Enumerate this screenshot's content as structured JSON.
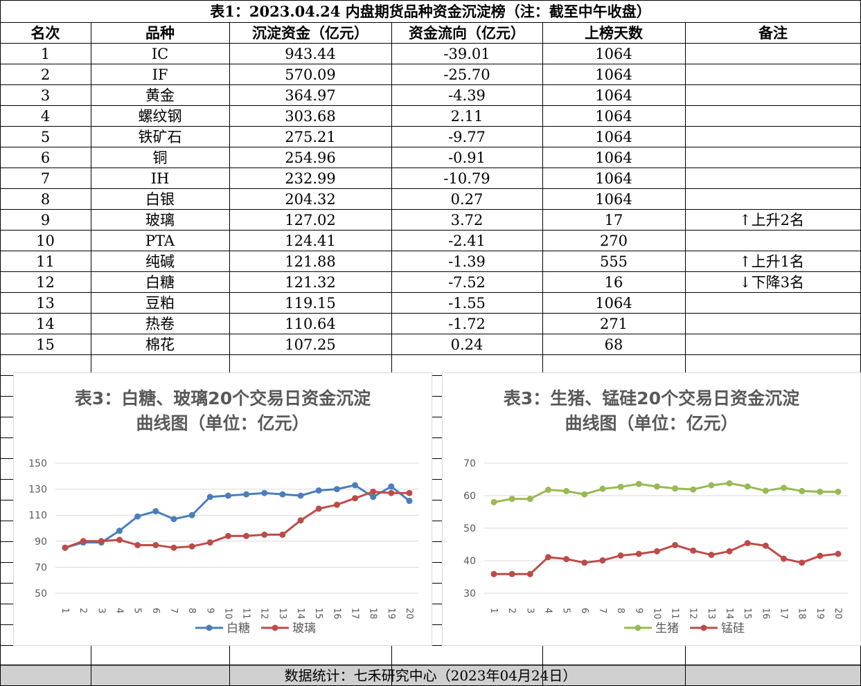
{
  "table": {
    "title": "表1：2023.04.24 内盘期货品种资金沉淀榜（注：截至中午收盘）",
    "headers": [
      "名次",
      "品种",
      "沉淀资金（亿元）",
      "资金流向（亿元）",
      "上榜天数",
      "备注"
    ],
    "rows": [
      [
        "1",
        "IC",
        "943.44",
        "-39.01",
        "1064",
        ""
      ],
      [
        "2",
        "IF",
        "570.09",
        "-25.70",
        "1064",
        ""
      ],
      [
        "3",
        "黄金",
        "364.97",
        "-4.39",
        "1064",
        ""
      ],
      [
        "4",
        "螺纹钢",
        "303.68",
        "2.11",
        "1064",
        ""
      ],
      [
        "5",
        "铁矿石",
        "275.21",
        "-9.77",
        "1064",
        ""
      ],
      [
        "6",
        "铜",
        "254.96",
        "-0.91",
        "1064",
        ""
      ],
      [
        "7",
        "IH",
        "232.99",
        "-10.79",
        "1064",
        ""
      ],
      [
        "8",
        "白银",
        "204.32",
        "0.27",
        "1064",
        ""
      ],
      [
        "9",
        "玻璃",
        "127.02",
        "3.72",
        "17",
        "↑上升2名"
      ],
      [
        "10",
        "PTA",
        "124.41",
        "-2.41",
        "270",
        ""
      ],
      [
        "11",
        "纯碱",
        "121.88",
        "-1.39",
        "555",
        "↑上升1名"
      ],
      [
        "12",
        "白糖",
        "121.32",
        "-7.52",
        "16",
        "↓下降3名"
      ],
      [
        "13",
        "豆粕",
        "119.15",
        "-1.55",
        "1064",
        ""
      ],
      [
        "14",
        "热卷",
        "110.64",
        "-1.72",
        "271",
        ""
      ],
      [
        "15",
        "棉花",
        "107.25",
        "0.24",
        "68",
        ""
      ]
    ]
  },
  "footer": "数据统计：七禾研究中心（2023年04月24日）",
  "chart_data": [
    {
      "type": "line",
      "title": "表3：白糖、玻璃20个交易日资金沉淀曲线图（单位：亿元）",
      "title_lines": [
        "表3：白糖、玻璃20个交易日资金沉淀",
        "曲线图（单位：亿元）"
      ],
      "categories": [
        "1",
        "2",
        "3",
        "4",
        "5",
        "6",
        "7",
        "8",
        "9",
        "10",
        "11",
        "12",
        "13",
        "14",
        "15",
        "16",
        "17",
        "18",
        "19",
        "20"
      ],
      "yticks": [
        50,
        70,
        90,
        110,
        130,
        150
      ],
      "ylim": [
        50,
        150
      ],
      "grid": true,
      "legend": "bottom",
      "series": [
        {
          "name": "白糖",
          "color": "#4a7ebb",
          "values": [
            85,
            89,
            89,
            98,
            109,
            113,
            107,
            110,
            124,
            125,
            126,
            127,
            126,
            125,
            129,
            130,
            133,
            124,
            132,
            121
          ]
        },
        {
          "name": "玻璃",
          "color": "#be4b48",
          "values": [
            85,
            90,
            90,
            91,
            87,
            87,
            85,
            86,
            89,
            94,
            94,
            95,
            95,
            106,
            115,
            118,
            123,
            128,
            127,
            127
          ]
        }
      ]
    },
    {
      "type": "line",
      "title": "表3：生猪、锰硅20个交易日资金沉淀曲线图（单位：亿元）",
      "title_lines": [
        "表3：生猪、锰硅20个交易日资金沉淀",
        "曲线图（单位：亿元）"
      ],
      "categories": [
        "1",
        "2",
        "3",
        "4",
        "5",
        "6",
        "7",
        "8",
        "9",
        "10",
        "11",
        "12",
        "13",
        "14",
        "15",
        "16",
        "17",
        "18",
        "19",
        "20"
      ],
      "yticks": [
        30,
        40,
        50,
        60,
        70
      ],
      "ylim": [
        30,
        70
      ],
      "grid": true,
      "legend": "bottom",
      "series": [
        {
          "name": "生猪",
          "color": "#98b954",
          "values": [
            58,
            59,
            59,
            61.8,
            61.4,
            60.4,
            62.1,
            62.7,
            63.6,
            62.8,
            62.2,
            61.9,
            63.2,
            63.8,
            62.8,
            61.5,
            62.4,
            61.4,
            61.2,
            61.2
          ]
        },
        {
          "name": "锰硅",
          "color": "#be4b48",
          "values": [
            35.9,
            35.9,
            35.9,
            41.1,
            40.5,
            39.4,
            40.1,
            41.6,
            42.1,
            42.9,
            44.8,
            43.1,
            41.8,
            42.9,
            45.4,
            44.6,
            40.6,
            39.4,
            41.5,
            42.1
          ]
        }
      ]
    }
  ]
}
